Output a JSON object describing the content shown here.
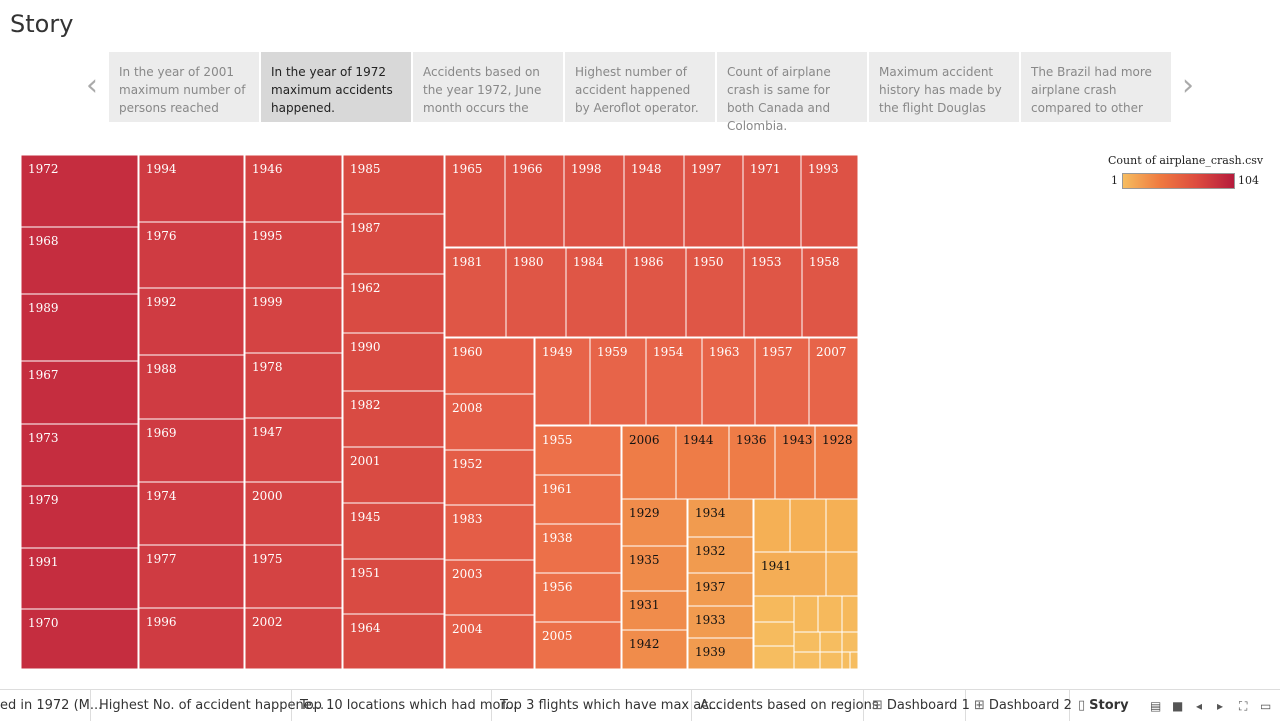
{
  "title": "Story",
  "story_points": [
    {
      "text": "In the year of 2001 maximum number of persons reached"
    },
    {
      "text": "In the year of 1972 maximum accidents happened.",
      "selected": true
    },
    {
      "text": "Accidents based on the year 1972, June month occurs the"
    },
    {
      "text": "Highest number of accident happened by Aeroflot operator."
    },
    {
      "text": "Count of airplane crash is same for both Canada and Colombia."
    },
    {
      "text": "Maximum accident history has made by the flight Douglas"
    },
    {
      "text": "The Brazil had more airplane crash compared to other"
    }
  ],
  "nav": {
    "prev_icon": "chevron-left-icon",
    "next_icon": "chevron-right-icon"
  },
  "legend": {
    "title": "Count of airplane_crash.csv",
    "min": "1",
    "max": "104",
    "colors": [
      "#f6bd60",
      "#ef7a40",
      "#dd4b3f",
      "#b51b3c"
    ]
  },
  "chart_data": {
    "type": "treemap",
    "measure": "Count of airplane_crash.csv",
    "labels": [
      "1972",
      "1968",
      "1989",
      "1967",
      "1973",
      "1979",
      "1991",
      "1970",
      "1994",
      "1976",
      "1992",
      "1988",
      "1969",
      "1974",
      "1977",
      "1996",
      "1946",
      "1995",
      "1999",
      "1978",
      "1947",
      "2000",
      "1975",
      "2002",
      "1985",
      "1987",
      "1962",
      "1990",
      "1982",
      "2001",
      "1945",
      "1951",
      "1964",
      "1965",
      "1966",
      "1998",
      "1948",
      "1997",
      "1971",
      "1993",
      "1981",
      "1980",
      "1984",
      "1986",
      "1950",
      "1953",
      "1958",
      "1960",
      "2008",
      "1952",
      "1983",
      "2003",
      "2004",
      "1949",
      "1959",
      "1954",
      "1963",
      "1957",
      "2007",
      "1955",
      "1961",
      "1938",
      "1956",
      "2005",
      "2006",
      "1944",
      "1936",
      "1943",
      "1928",
      "1929",
      "1935",
      "1931",
      "1942",
      "1934",
      "1932",
      "1937",
      "1933",
      "1939",
      "1941"
    ]
  },
  "tabs": [
    {
      "label": "ed in 1972 (M...",
      "icon": ""
    },
    {
      "label": "Highest No. of accident happene...",
      "icon": ""
    },
    {
      "label": "Top 10 locations which had mor...",
      "icon": ""
    },
    {
      "label": "Top 3 flights which have max ac...",
      "icon": ""
    },
    {
      "label": "Accidents based on regions",
      "icon": ""
    },
    {
      "label": "Dashboard 1",
      "icon": "dashboard-icon"
    },
    {
      "label": "Dashboard 2",
      "icon": "dashboard-icon"
    },
    {
      "label": "Story",
      "icon": "story-icon",
      "active": true
    }
  ]
}
